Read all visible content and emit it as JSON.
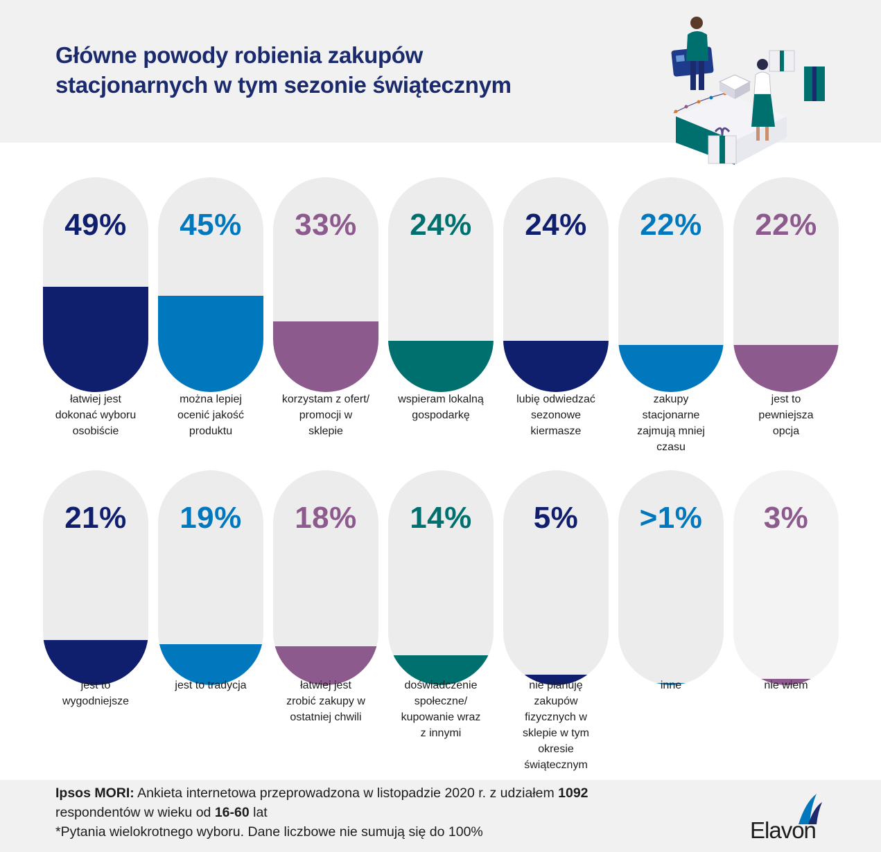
{
  "header": {
    "title_line1": "Główne powody robienia zakupów",
    "title_line2": "stacjonarnych w tym sezonie świątecznym"
  },
  "colors": {
    "navy": "#101e6e",
    "blue": "#0178be",
    "purple": "#8c5a8c",
    "teal": "#00706e",
    "pill_background": "#ececec",
    "title": "#1a2a6c"
  },
  "chart_data": {
    "type": "bar",
    "categories": [
      "łatwiej jest dokonać wyboru osobiście",
      "można lepiej ocenić jakość produktu",
      "korzystam z ofert/ promocji w sklepie",
      "wspieram lokalną gospodarkę",
      "lubię odwiedzać sezonowe kiermasze",
      "zakupy stacjonarne zajmują mniej czasu",
      "jest to pewniejsza opcja",
      "jest to wygodniejsze",
      "jest to tradycja",
      "łatwiej jest zrobić zakupy w ostatniej chwili",
      "doświadczenie społeczne/ kupowanie wraz z innymi",
      "nie planuję zakupów fizycznych w sklepie w tym okresie świątecznym",
      "inne",
      "nie wiem"
    ],
    "values": [
      49,
      45,
      33,
      24,
      24,
      22,
      22,
      21,
      19,
      18,
      14,
      5,
      1,
      3
    ],
    "value_labels": [
      "49%",
      "45%",
      "33%",
      "24%",
      "24%",
      "22%",
      "22%",
      "21%",
      "19%",
      "18%",
      "14%",
      "5%",
      ">1%",
      "3%"
    ],
    "ylim": [
      0,
      100
    ],
    "colors": [
      "navy",
      "blue",
      "purple",
      "teal",
      "navy",
      "blue",
      "purple",
      "navy",
      "blue",
      "purple",
      "teal",
      "navy",
      "blue",
      "purple"
    ]
  },
  "labels": [
    [
      "łatwiej jest",
      "dokonać wyboru",
      "osobiście"
    ],
    [
      "można lepiej",
      "ocenić jakość",
      "produktu"
    ],
    [
      "korzystam z ofert/",
      "promocji w",
      "sklepie"
    ],
    [
      "wspieram lokalną",
      "gospodarkę"
    ],
    [
      "lubię odwiedzać",
      "sezonowe",
      "kiermasze"
    ],
    [
      "zakupy",
      "stacjonarne",
      "zajmują mniej",
      "czasu"
    ],
    [
      "jest to",
      "pewniejsza",
      "opcja"
    ],
    [
      "jest to",
      "wygodniejsze"
    ],
    [
      "jest to tradycja"
    ],
    [
      "łatwiej jest",
      "zrobić zakupy w",
      "ostatniej chwili"
    ],
    [
      "doświadczenie",
      "społeczne/",
      "kupowanie wraz",
      "z innymi"
    ],
    [
      "nie planuję",
      "zakupów",
      "fizycznych w",
      "sklepie w tym",
      "okresie",
      "świątecznym"
    ],
    [
      "inne"
    ],
    [
      "nie wiem"
    ]
  ],
  "footer": {
    "source_bold": "Ipsos MORI:",
    "source_text": " Ankieta internetowa przeprowadzona w listopadzie 2020 r. z udziałem ",
    "respondents": "1092",
    "line2_text": "respondentów w wieku od ",
    "age_range": "16-60",
    "line2_end": " lat",
    "note": "*Pytania wielokrotnego wyboru. Dane liczbowe nie sumują się do 100%"
  },
  "brand": {
    "logo_text": "Elavon",
    "logo_icon": "elavon-swoosh-icon"
  },
  "illustration": {
    "icon": "shopping-cashier-illustration"
  }
}
